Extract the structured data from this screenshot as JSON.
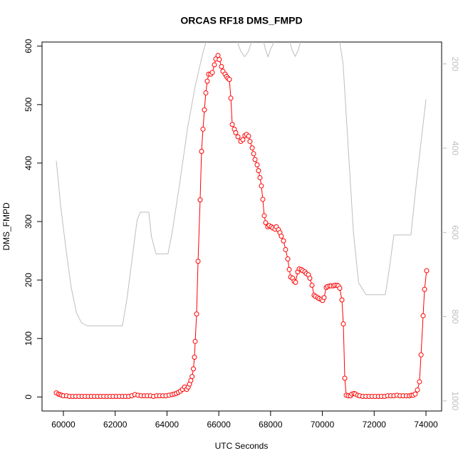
{
  "chart_data": {
    "type": "line",
    "title": "ORCAS RF18 DMS_FMPD",
    "x_label": "UTC Seconds",
    "y_label": "DMS_FMPD",
    "xlim": [
      59175,
      74605
    ],
    "xticks": [
      60000,
      62000,
      64000,
      66000,
      68000,
      70000,
      72000,
      74000
    ],
    "ylim": [
      -24,
      607
    ],
    "yticks": [
      0,
      100,
      200,
      300,
      400,
      500,
      600
    ],
    "y2lim": [
      1024,
      148
    ],
    "y2ticks": [
      200,
      400,
      600,
      800,
      1000
    ],
    "series": [
      {
        "color": "#ff0000",
        "marker": "circle",
        "x": [
          59725,
          59810,
          59870,
          59930,
          60000,
          60120,
          60240,
          60360,
          60480,
          60600,
          60720,
          60840,
          60960,
          61080,
          61200,
          61320,
          61440,
          61560,
          61680,
          61800,
          61920,
          62040,
          62160,
          62280,
          62400,
          62520,
          62640,
          62760,
          62880,
          63000,
          63120,
          63240,
          63360,
          63480,
          63600,
          63720,
          63840,
          63960,
          64080,
          64200,
          64280,
          64360,
          64440,
          64520,
          64600,
          64680,
          64760,
          64820,
          64870,
          64920,
          64970,
          65020,
          65060,
          65090,
          65143,
          65200,
          65280,
          65335,
          65390,
          65445,
          65500,
          65555,
          65610,
          65690,
          65750,
          65830,
          65885,
          65970,
          66020,
          66105,
          66160,
          66245,
          66300,
          66355,
          66410,
          66465,
          66520,
          66600,
          66655,
          66740,
          66850,
          66930,
          67010,
          67070,
          67150,
          67205,
          67290,
          67345,
          67400,
          67480,
          67535,
          67590,
          67645,
          67700,
          67755,
          67810,
          67890,
          67945,
          68030,
          68085,
          68170,
          68220,
          68305,
          68360,
          68415,
          68500,
          68580,
          68665,
          68720,
          68775,
          68855,
          68910,
          68965,
          69050,
          69105,
          69185,
          69240,
          69325,
          69380,
          69460,
          69515,
          69600,
          69680,
          69735,
          69820,
          69875,
          69955,
          70010,
          70065,
          70150,
          70205,
          70285,
          70340,
          70425,
          70480,
          70560,
          70615,
          70670,
          70755,
          70810,
          70865,
          70920,
          71000,
          71085,
          71140,
          71220,
          71275,
          71360,
          71440,
          71560,
          71680,
          71800,
          71920,
          72040,
          72160,
          72280,
          72400,
          72520,
          72640,
          72760,
          72880,
          73000,
          73120,
          73240,
          73360,
          73440,
          73505,
          73585,
          73670,
          73750,
          73810,
          73890,
          73945,
          74025
        ],
        "values": [
          7,
          5,
          4,
          3,
          2,
          2,
          1,
          1,
          1,
          1,
          1,
          1,
          1,
          1,
          1,
          1,
          1,
          1,
          1,
          1,
          1,
          1,
          1,
          1,
          1,
          1,
          2,
          4,
          3,
          2,
          2,
          2,
          2,
          1,
          2,
          2,
          2,
          2,
          3,
          4,
          5,
          6,
          8,
          10,
          13,
          17,
          13,
          17,
          22,
          28,
          35,
          48,
          68,
          95,
          142,
          232,
          337,
          420,
          458,
          491,
          520,
          540,
          552,
          552,
          555,
          568,
          578,
          584,
          577,
          565,
          557,
          552,
          548,
          545,
          543,
          511,
          466,
          458,
          452,
          445,
          437,
          440,
          447,
          449,
          446,
          437,
          426,
          416,
          406,
          397,
          387,
          375,
          361,
          338,
          310,
          298,
          291,
          293,
          291,
          289,
          287,
          291,
          286,
          281,
          275,
          267,
          252,
          236,
          218,
          205,
          203,
          198,
          196,
          214,
          219,
          218,
          216,
          214,
          211,
          209,
          203,
          191,
          174,
          172,
          170,
          168,
          167,
          165,
          170,
          187,
          189,
          190,
          190,
          190,
          191,
          191,
          190,
          186,
          166,
          125,
          32,
          3,
          2,
          2,
          5,
          6,
          5,
          3,
          2,
          1,
          1,
          1,
          1,
          1,
          1,
          1,
          1,
          2,
          2,
          2,
          3,
          2,
          2,
          2,
          2,
          3,
          3,
          5,
          12,
          26,
          72,
          139,
          184,
          216
        ]
      },
      {
        "color": "#bebebe",
        "axis": "y2",
        "x": [
          59725,
          59900,
          60100,
          60300,
          60500,
          60700,
          60935,
          62280,
          62450,
          62700,
          62850,
          62970,
          63300,
          63400,
          63575,
          64040,
          64200,
          64500,
          64800,
          65100,
          65400,
          65700,
          66000,
          66300,
          66700,
          66850,
          67000,
          67150,
          67300,
          67700,
          67800,
          67900,
          68000,
          68200,
          68700,
          68850,
          68950,
          69050,
          69200,
          70600,
          70800,
          71000,
          71200,
          71400,
          71690,
          72430,
          72600,
          72760,
          73420,
          73600,
          73800,
          74000
        ],
        "values": [
          430,
          540,
          640,
          730,
          790,
          815,
          822,
          822,
          760,
          640,
          570,
          552,
          552,
          610,
          651,
          651,
          600,
          480,
          350,
          250,
          170,
          110,
          90,
          100,
          145,
          170,
          183,
          170,
          140,
          140,
          165,
          183,
          165,
          140,
          140,
          170,
          182,
          170,
          140,
          120,
          200,
          400,
          600,
          720,
          748,
          748,
          680,
          606,
          606,
          500,
          390,
          284
        ]
      }
    ]
  }
}
